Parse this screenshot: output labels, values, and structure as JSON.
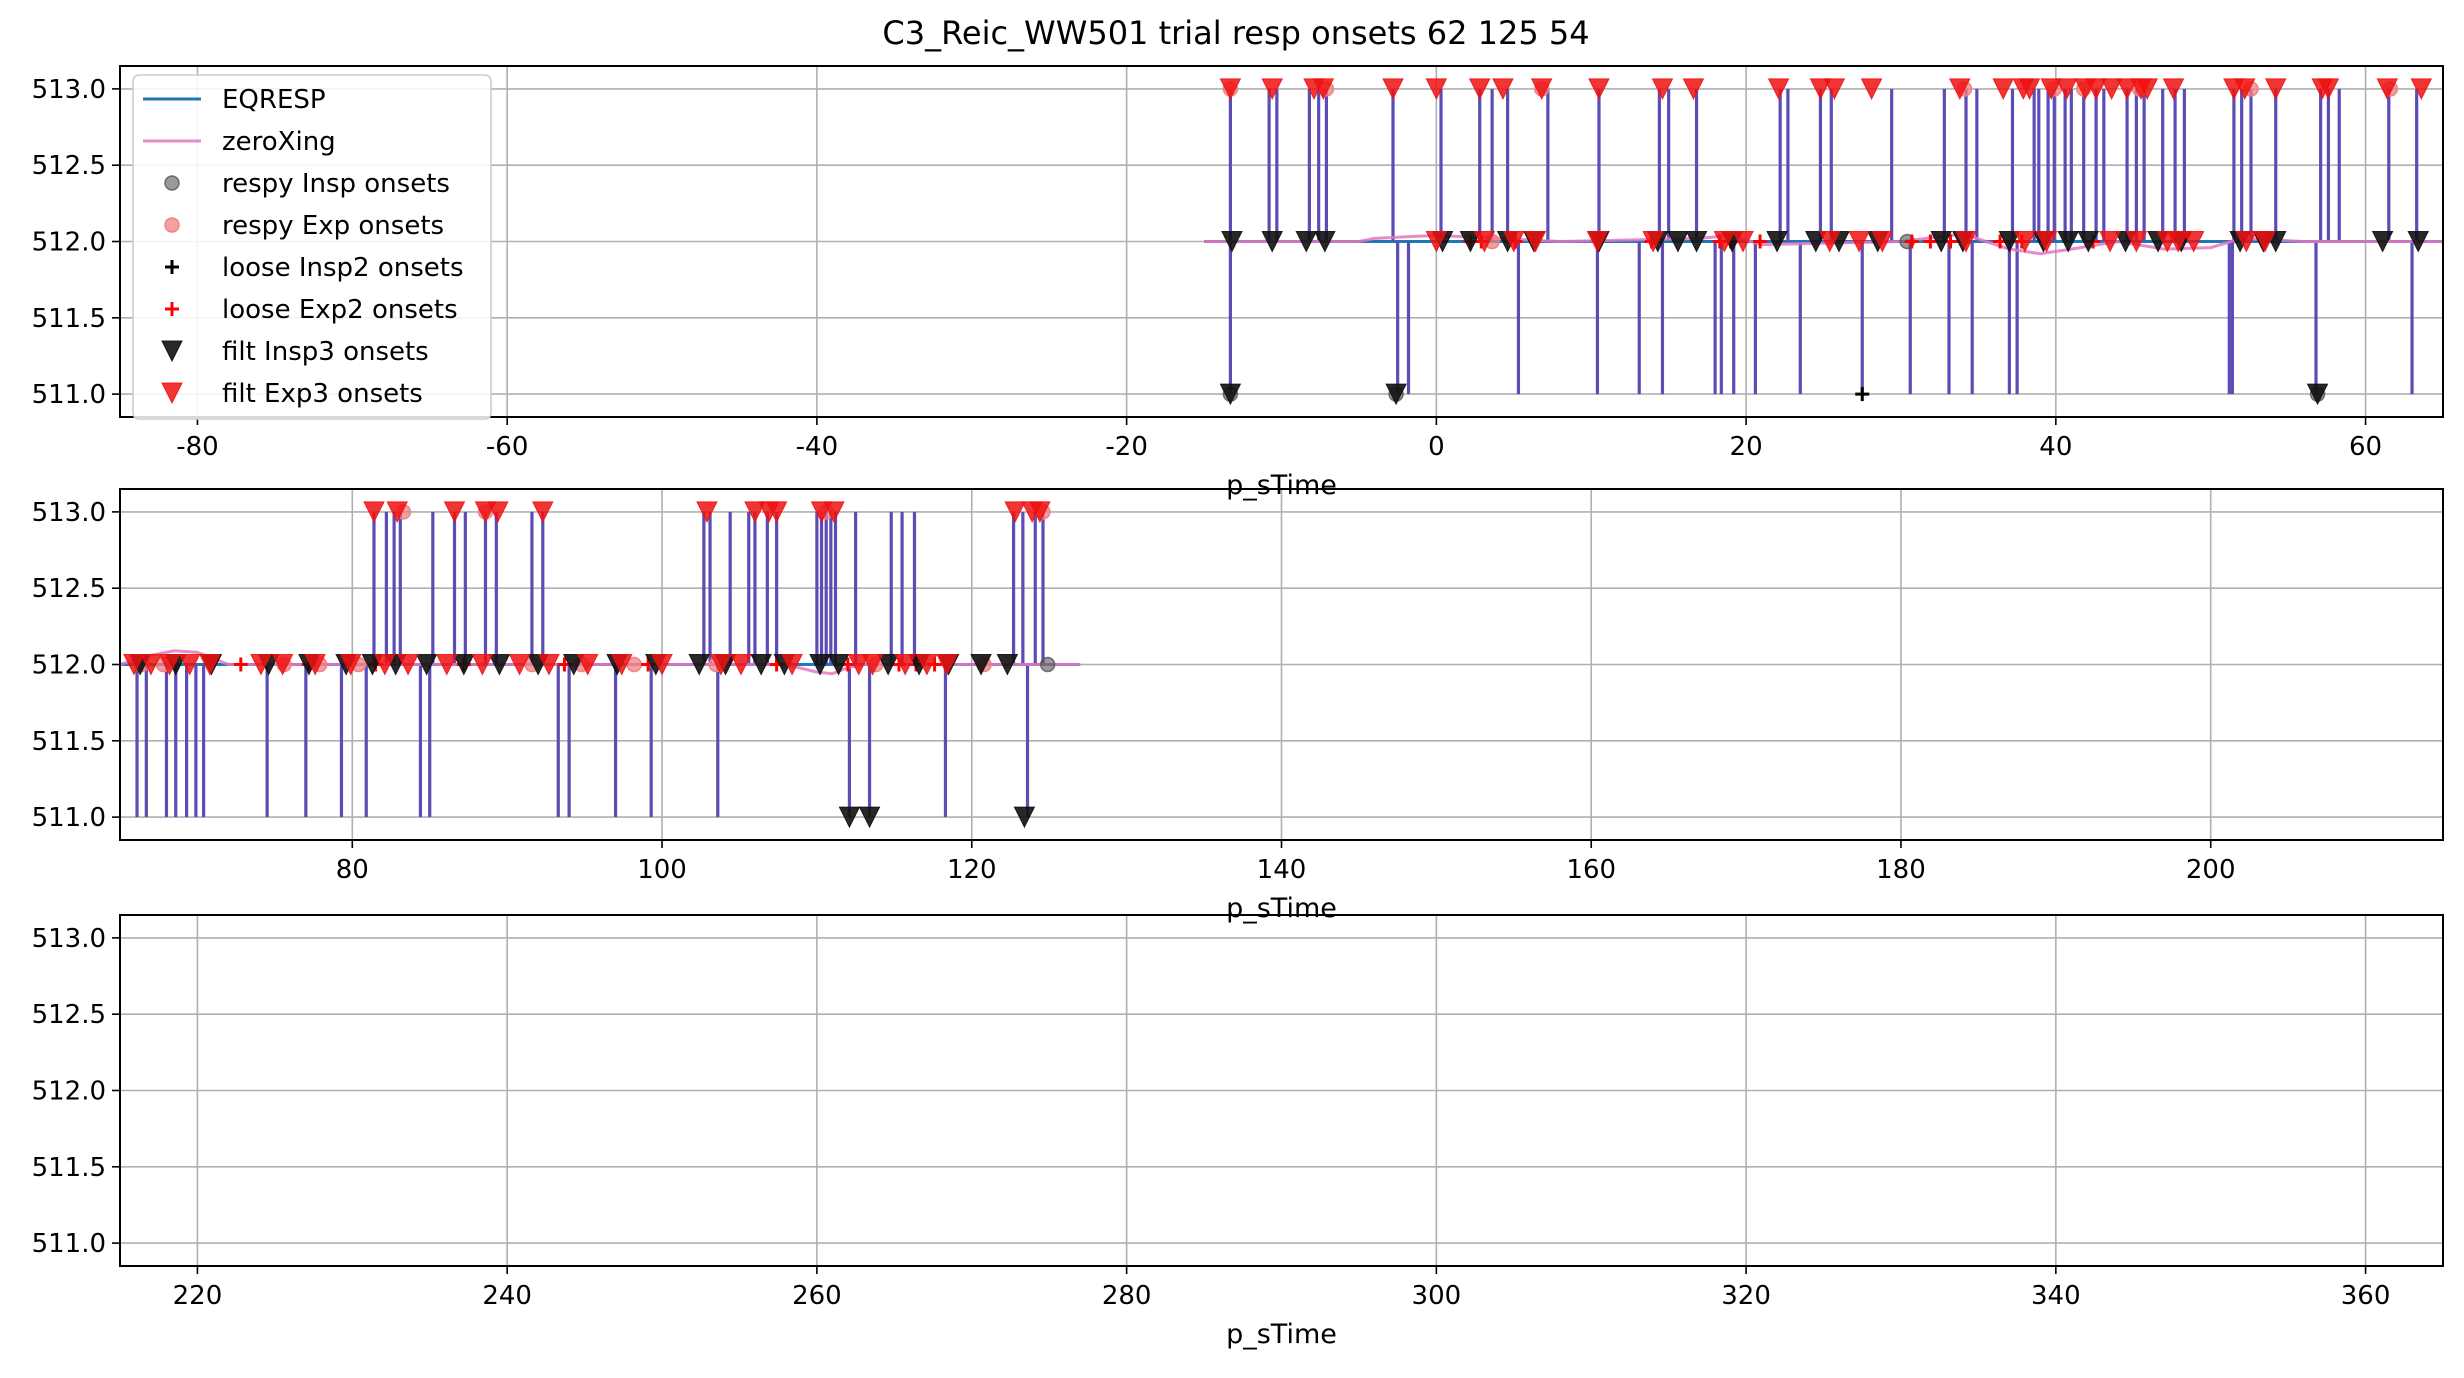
{
  "figure": {
    "title": "C3_Reic_WW501 trial resp onsets 62 125 54"
  },
  "colors": {
    "eqresp": "#1f77b4",
    "zeroxing": "#e377c2",
    "insp_marker": "#000000",
    "exp_marker": "#ff0000",
    "grid": "#b0b0b0"
  },
  "chart_data": [
    {
      "type": "line",
      "xlabel": "p_sTime",
      "ylabel": "",
      "xlim": [
        -85,
        65
      ],
      "ylim": [
        510.85,
        513.15
      ],
      "xticks": [
        -80,
        -60,
        -40,
        -20,
        0,
        20,
        40,
        60
      ],
      "yticks": [
        511.0,
        511.5,
        512.0,
        512.5,
        513.0
      ],
      "grid": true,
      "legend": {
        "placement": "upper-left",
        "entries": [
          {
            "key": "eqresp",
            "label": "EQRESP"
          },
          {
            "key": "zeroxing",
            "label": "zeroXing"
          },
          {
            "key": "respy_insp",
            "label": "respy Insp onsets"
          },
          {
            "key": "respy_exp",
            "label": "respy Exp onsets"
          },
          {
            "key": "loose_insp2",
            "label": "loose Insp2 onsets"
          },
          {
            "key": "loose_exp2",
            "label": "loose Exp2 onsets"
          },
          {
            "key": "filt_insp3",
            "label": "filt Insp3 onsets"
          },
          {
            "key": "filt_exp3",
            "label": "filt Exp3 onsets"
          }
        ]
      },
      "signal_range": [
        -15,
        65
      ],
      "spikes_up": [
        -13.3,
        -10.8,
        -10.3,
        -8.2,
        -7.6,
        -7.1,
        -2.8,
        0.3,
        2.8,
        3.6,
        4.6,
        7.2,
        10.5,
        14.4,
        15.0,
        16.8,
        22.2,
        22.7,
        24.8,
        25.5,
        29.4,
        32.8,
        34.2,
        34.9,
        37.2,
        38.6,
        38.9,
        39.5,
        39.9,
        40.6,
        41.0,
        41.8,
        42.6,
        43.1,
        44.6,
        45.2,
        45.7,
        46.9,
        47.7,
        48.3,
        51.5,
        52.0,
        52.6,
        54.2,
        57.1,
        57.6,
        58.3,
        61.5,
        63.3
      ],
      "spikes_down": [
        -13.3,
        -2.5,
        -1.8,
        5.3,
        10.4,
        13.1,
        14.6,
        18.0,
        18.4,
        19.2,
        20.6,
        23.5,
        27.5,
        30.6,
        33.1,
        34.6,
        37.0,
        37.5,
        51.2,
        51.4,
        56.8,
        63.0
      ],
      "respy_insp": [
        -13.3,
        -2.6,
        30.4,
        56.9
      ],
      "respy_exp": [
        -13.3,
        -7.1,
        3.6,
        6.8,
        34.1,
        39.9,
        41.8,
        45.4,
        52.6,
        61.6
      ],
      "loose_insp2": [
        27.5
      ],
      "loose_exp2": [
        2.2,
        2.9,
        5.1,
        13.9,
        18.3,
        19.0,
        20.9,
        30.7,
        31.9,
        33.2,
        36.4,
        37.8,
        42.4
      ],
      "filt_insp3_low": [
        -13.3,
        -2.6,
        56.9
      ],
      "filt_insp3_mid": [
        -13.2,
        -10.6,
        -8.4,
        -7.2,
        0.4,
        2.2,
        4.6,
        6.3,
        10.5,
        14.3,
        15.6,
        16.8,
        19.1,
        22.0,
        24.5,
        26.0,
        28.5,
        32.6,
        34.0,
        37.0,
        39.2,
        40.8,
        42.1,
        44.5,
        46.6,
        48.1,
        51.9,
        53.4,
        54.2,
        61.1,
        63.4
      ],
      "filt_exp3_mid": [
        0.0,
        3.1,
        5.0,
        6.4,
        10.4,
        14.0,
        18.6,
        19.8,
        25.4,
        27.3,
        28.8,
        34.2,
        38.0,
        39.4,
        43.5,
        45.2,
        47.2,
        47.9,
        48.9,
        52.3,
        53.5
      ],
      "filt_exp3_top": [
        -13.3,
        -10.6,
        -7.9,
        -7.3,
        -2.8,
        0.0,
        2.8,
        4.3,
        6.8,
        10.5,
        14.6,
        16.6,
        22.1,
        24.8,
        25.7,
        28.1,
        33.8,
        36.6,
        37.9,
        38.3,
        39.7,
        40.7,
        41.9,
        42.6,
        43.6,
        44.6,
        45.5,
        45.9,
        47.6,
        51.5,
        52.2,
        54.2,
        57.2,
        57.6,
        61.4,
        63.6
      ],
      "zeroxing_wave": [
        [
          -15,
          512.0
        ],
        [
          -5,
          512.0
        ],
        [
          -4,
          512.02
        ],
        [
          0,
          512.04
        ],
        [
          8,
          512.0
        ],
        [
          17,
          512.02
        ],
        [
          19,
          512.04
        ],
        [
          21,
          511.98
        ],
        [
          30,
          512.0
        ],
        [
          34,
          512.05
        ],
        [
          37,
          511.95
        ],
        [
          39,
          511.92
        ],
        [
          41,
          511.95
        ],
        [
          44,
          512.0
        ],
        [
          47,
          511.95
        ],
        [
          50,
          511.96
        ],
        [
          52,
          512.02
        ],
        [
          56,
          512.0
        ],
        [
          65,
          512.0
        ]
      ]
    },
    {
      "type": "line",
      "xlabel": "p_sTime",
      "ylabel": "",
      "xlim": [
        65,
        215
      ],
      "ylim": [
        510.85,
        513.15
      ],
      "xticks": [
        80,
        100,
        120,
        140,
        160,
        180,
        200
      ],
      "yticks": [
        511.0,
        511.5,
        512.0,
        512.5,
        513.0
      ],
      "grid": true,
      "signal_range": [
        65,
        127
      ],
      "spikes_up": [
        81.4,
        82.2,
        82.7,
        83.1,
        85.2,
        86.6,
        87.3,
        88.6,
        89.3,
        91.6,
        92.3,
        102.7,
        103.1,
        104.4,
        105.6,
        106.0,
        106.8,
        107.4,
        110.0,
        110.3,
        110.6,
        110.9,
        111.2,
        112.5,
        114.8,
        115.5,
        116.3,
        122.7,
        123.3,
        124.1,
        124.6
      ],
      "spikes_down": [
        66.1,
        66.7,
        68.0,
        68.6,
        69.3,
        69.9,
        70.4,
        74.5,
        77.0,
        79.3,
        80.9,
        84.4,
        85.0,
        93.3,
        94.0,
        97.0,
        99.3,
        103.6,
        112.1,
        113.4,
        118.3,
        123.6
      ],
      "respy_insp": [
        124.9
      ],
      "respy_exp": [
        66.4,
        67.8,
        75.6,
        77.9,
        80.4,
        83.3,
        88.6,
        91.6,
        94.8,
        98.2,
        103.5,
        110.6,
        113.8,
        120.8,
        124.6
      ],
      "loose_insp2": [],
      "loose_exp2": [
        72.8,
        77.2,
        81.5,
        87.2,
        93.7,
        99.1,
        107.4,
        112.0,
        115.3,
        116.4,
        117.6
      ],
      "filt_insp3_low": [
        112.1,
        113.4,
        123.4
      ],
      "filt_insp3_mid": [
        66.3,
        68.6,
        70.9,
        74.6,
        77.2,
        79.6,
        81.3,
        82.8,
        84.8,
        87.2,
        89.5,
        92.0,
        94.3,
        97.1,
        99.6,
        102.4,
        104.1,
        106.4,
        107.9,
        110.2,
        111.4,
        114.6,
        116.6,
        118.5,
        120.6,
        122.3
      ],
      "filt_exp3_mid": [
        65.9,
        67.0,
        68.2,
        69.5,
        70.8,
        74.1,
        75.5,
        77.6,
        79.9,
        82.1,
        83.6,
        86.1,
        88.4,
        90.8,
        92.7,
        95.2,
        97.4,
        100.0,
        103.8,
        105.1,
        108.4,
        112.7,
        113.6,
        115.7,
        117.1,
        118.4
      ],
      "filt_exp3_top": [
        81.4,
        82.9,
        86.6,
        88.6,
        89.4,
        92.3,
        102.9,
        106.0,
        106.9,
        107.4,
        110.3,
        111.1,
        122.8,
        123.9,
        124.4
      ],
      "zeroxing_wave": [
        [
          65,
          512.0
        ],
        [
          66,
          512.03
        ],
        [
          67,
          512.06
        ],
        [
          68.5,
          512.09
        ],
        [
          70,
          512.08
        ],
        [
          71,
          512.04
        ],
        [
          72,
          512.0
        ],
        [
          108,
          512.0
        ],
        [
          110,
          511.95
        ],
        [
          111,
          511.94
        ],
        [
          112,
          511.98
        ],
        [
          113,
          512.0
        ],
        [
          127,
          512.0
        ]
      ]
    },
    {
      "type": "line",
      "xlabel": "p_sTime",
      "ylabel": "",
      "xlim": [
        215,
        365
      ],
      "ylim": [
        510.85,
        513.15
      ],
      "xticks": [
        220,
        240,
        260,
        280,
        300,
        320,
        340,
        360
      ],
      "yticks": [
        511.0,
        511.5,
        512.0,
        512.5,
        513.0
      ],
      "grid": true,
      "signal_range": null,
      "spikes_up": [],
      "spikes_down": [],
      "respy_insp": [],
      "respy_exp": [],
      "loose_insp2": [],
      "loose_exp2": [],
      "filt_insp3_low": [],
      "filt_insp3_mid": [],
      "filt_exp3_mid": [],
      "filt_exp3_top": [],
      "zeroxing_wave": []
    }
  ]
}
